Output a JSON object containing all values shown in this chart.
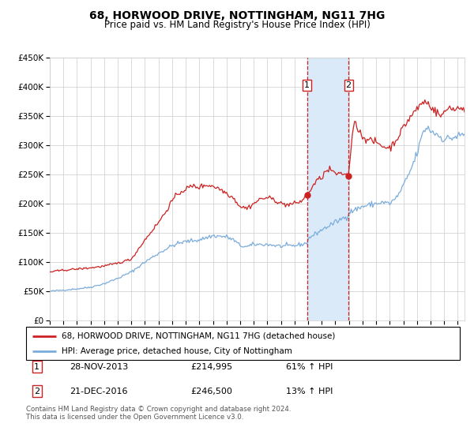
{
  "title": "68, HORWOOD DRIVE, NOTTINGHAM, NG11 7HG",
  "subtitle": "Price paid vs. HM Land Registry's House Price Index (HPI)",
  "ylim": [
    0,
    450000
  ],
  "yticks": [
    0,
    50000,
    100000,
    150000,
    200000,
    250000,
    300000,
    350000,
    400000,
    450000
  ],
  "ytick_labels": [
    "£0",
    "£50K",
    "£100K",
    "£150K",
    "£200K",
    "£250K",
    "£300K",
    "£350K",
    "£400K",
    "£450K"
  ],
  "hpi_color": "#7aacdc",
  "price_color": "#cc2222",
  "marker_color": "#cc2222",
  "vline_color": "#cc2222",
  "shade_color": "#daeaf8",
  "grid_color": "#cccccc",
  "bg_color": "#ffffff",
  "transaction1_date": 2013.91,
  "transaction1_price": 214995,
  "transaction2_date": 2016.97,
  "transaction2_price": 246500,
  "legend_label_price": "68, HORWOOD DRIVE, NOTTINGHAM, NG11 7HG (detached house)",
  "legend_label_hpi": "HPI: Average price, detached house, City of Nottingham",
  "table_rows": [
    {
      "num": "1",
      "date": "28-NOV-2013",
      "price": "£214,995",
      "change": "61% ↑ HPI"
    },
    {
      "num": "2",
      "date": "21-DEC-2016",
      "price": "£246,500",
      "change": "13% ↑ HPI"
    }
  ],
  "footnote": "Contains HM Land Registry data © Crown copyright and database right 2024.\nThis data is licensed under the Open Government Licence v3.0.",
  "xmin": 1995.0,
  "xmax": 2025.5
}
